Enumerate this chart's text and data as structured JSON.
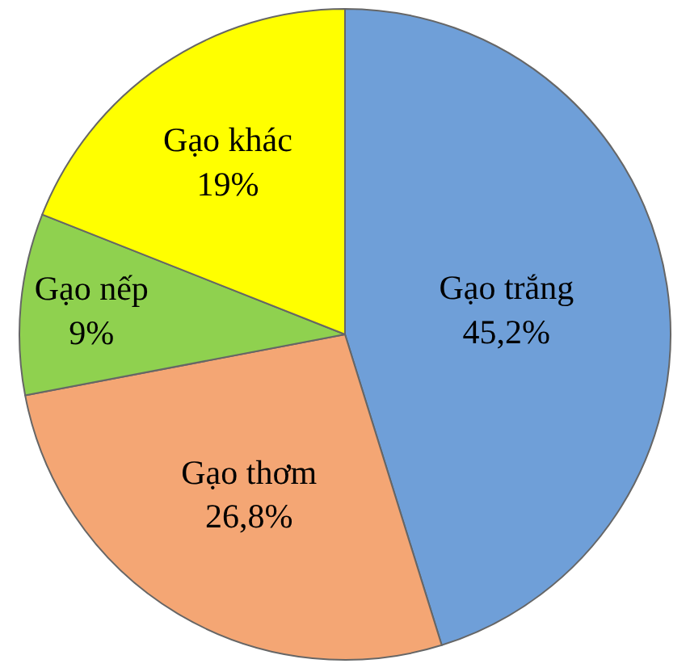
{
  "chart_data": {
    "type": "pie",
    "categories": [
      "Gạo trắng",
      "Gạo thơm",
      "Gạo nếp",
      "Gạo khác"
    ],
    "values": [
      45.2,
      26.8,
      9,
      19
    ],
    "value_labels": [
      "45,2%",
      "26,8%",
      "9%",
      "19%"
    ],
    "colors": [
      "#6f9fd8",
      "#f4a674",
      "#8fd14f",
      "#ffff00"
    ]
  }
}
